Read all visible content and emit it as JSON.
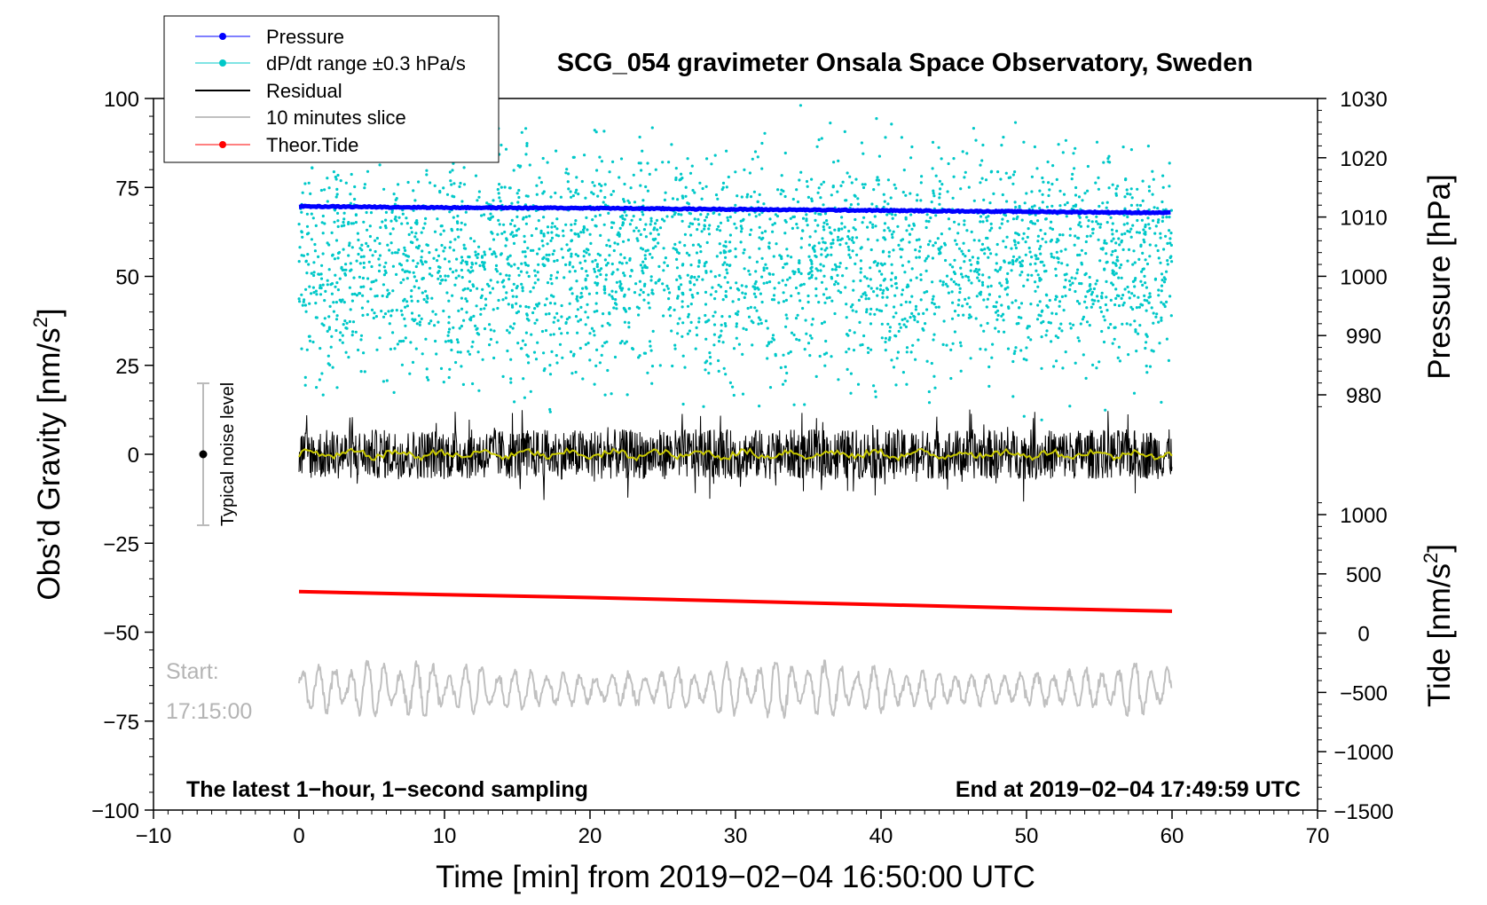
{
  "chart_data": {
    "type": "line",
    "title": "SCG_054 gravimeter Onsala Space Observatory, Sweden",
    "xlabel": "Time [min] from 2019−02−04 16:50:00 UTC",
    "ylabel_left": "Obs’d Gravity [nm/s",
    "ylabel_left_sup": "2",
    "ylabel_left_end": "]",
    "ylabel_right_top": "Pressure [hPa]",
    "ylabel_right_bottom": "Tide [nm/s",
    "ylabel_right_bottom_sup": "2",
    "ylabel_right_bottom_end": "]",
    "xlim": [
      -10,
      70
    ],
    "ylim": [
      -100,
      100
    ],
    "xticks": [
      -10,
      0,
      10,
      20,
      30,
      40,
      50,
      60,
      70
    ],
    "xtick_labels": [
      "−10",
      "0",
      "10",
      "20",
      "30",
      "40",
      "50",
      "60",
      "70"
    ],
    "yticks": [
      100,
      75,
      50,
      25,
      0,
      -25,
      -50,
      -75,
      -100
    ],
    "ytick_labels": [
      "100",
      "75",
      "50",
      "25",
      "0",
      "−25",
      "−50",
      "−75",
      "−100"
    ],
    "pressure_axis": {
      "ticks": [
        1030,
        1020,
        1010,
        1000,
        990,
        980
      ],
      "labels": [
        "1030",
        "1020",
        "1010",
        "1000",
        "990",
        "980"
      ]
    },
    "tide_axis": {
      "ticks": [
        1000,
        500,
        0,
        -500,
        -1000,
        -1500
      ],
      "labels": [
        "1000",
        "500",
        "0",
        "−500",
        "−1000",
        "−1500"
      ]
    },
    "series": [
      {
        "name": "Pressure",
        "color": "#0000ff",
        "axis": "pressure",
        "x": [
          0,
          10,
          20,
          30,
          40,
          50,
          60
        ],
        "values": [
          1011.8,
          1011.6,
          1011.5,
          1011.3,
          1011.1,
          1010.9,
          1010.7
        ]
      },
      {
        "name": "dP/dt range ±0.3 hPa/s",
        "color": "#00c8c8",
        "kind": "scatter",
        "range": [
          -0.3,
          0.3
        ]
      },
      {
        "name": "Residual",
        "color": "#000000",
        "approx_range": [
          -12,
          12
        ]
      },
      {
        "name": "10 minutes slice",
        "color": "#c0c0c0",
        "start_label": "Start:",
        "start_time": "17:15:00"
      },
      {
        "name": "Theor.Tide",
        "color": "#ff0000",
        "axis": "tide",
        "x": [
          0,
          10,
          20,
          30,
          40,
          50,
          60
        ],
        "values": [
          350,
          325,
          300,
          270,
          240,
          210,
          185
        ]
      }
    ],
    "noise_bar": {
      "label": "Typical noise level",
      "center": 0,
      "range": [
        -20,
        20
      ],
      "x": -7
    },
    "legend": {
      "position": "top-left",
      "entries": [
        "Pressure",
        "dP/dt range ±0.3 hPa/s",
        "Residual",
        "10 minutes slice",
        "Theor.Tide"
      ]
    },
    "annotations": {
      "bottom_left": "The latest 1−hour, 1−second sampling",
      "bottom_right": "End at 2019−02−04 17:49:59 UTC"
    },
    "colors": {
      "pressure": "#0000ff",
      "dpdt": "#00c8c8",
      "residual": "#000000",
      "smooth": "#c8c800",
      "slice": "#c0c0c0",
      "tide": "#ff0000"
    }
  }
}
